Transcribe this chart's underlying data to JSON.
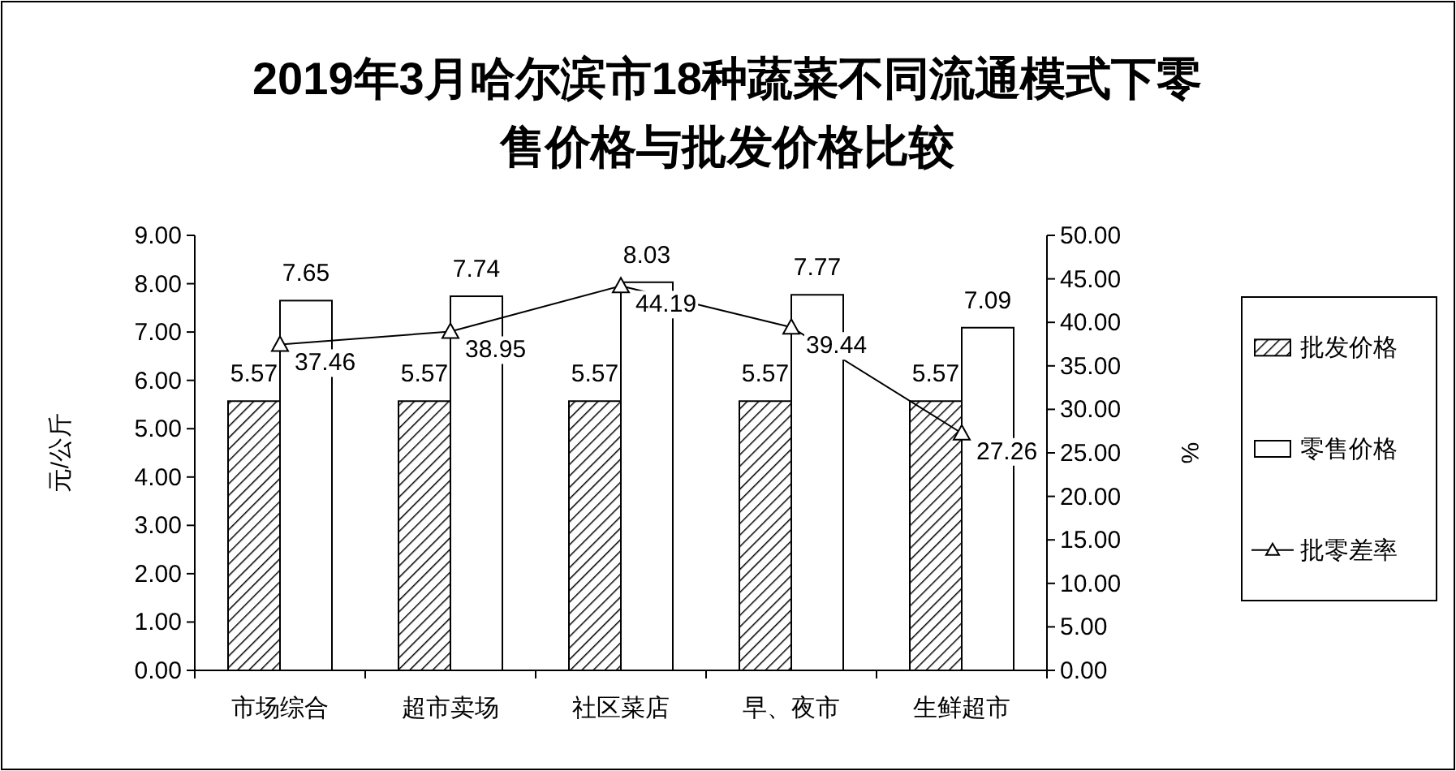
{
  "chart_data": {
    "type": "bar",
    "title": "2019年3月哈尔滨市18种蔬菜不同流通模式下零售价格与批发价格比较",
    "categories": [
      "市场综合",
      "超市卖场",
      "社区菜店",
      "早、夜市",
      "生鲜超市"
    ],
    "series": [
      {
        "name": "批发价格",
        "color": "#000000",
        "values": [
          5.57,
          5.57,
          5.57,
          5.57,
          5.57
        ]
      },
      {
        "name": "零售价格",
        "color": "#ffffff",
        "values": [
          7.65,
          7.74,
          8.03,
          7.77,
          7.09
        ]
      },
      {
        "name": "批零差率",
        "type": "line",
        "axis": "y2",
        "color": "#000000",
        "marker": "triangle",
        "values": [
          37.46,
          38.95,
          44.19,
          39.44,
          27.26
        ]
      }
    ],
    "ylabel": "元/公斤",
    "y2label": "%",
    "ylim": [
      0,
      9
    ],
    "yticks": [
      {
        "value": 0,
        "label": "0.00"
      },
      {
        "value": 1,
        "label": "1.00"
      },
      {
        "value": 2,
        "label": "2.00"
      },
      {
        "value": 3,
        "label": "3.00"
      },
      {
        "value": 4,
        "label": "4.00"
      },
      {
        "value": 5,
        "label": "5.00"
      },
      {
        "value": 6,
        "label": "6.00"
      },
      {
        "value": 7,
        "label": "7.00"
      },
      {
        "value": 8,
        "label": "8.00"
      },
      {
        "value": 9,
        "label": "9.00"
      }
    ],
    "y2lim": [
      0,
      50
    ],
    "y2ticks": [
      {
        "value": 0,
        "label": "0.00"
      },
      {
        "value": 5,
        "label": "5.00"
      },
      {
        "value": 10,
        "label": "10.00"
      },
      {
        "value": 15,
        "label": "15.00"
      },
      {
        "value": 20,
        "label": "20.00"
      },
      {
        "value": 25,
        "label": "25.00"
      },
      {
        "value": 30,
        "label": "30.00"
      },
      {
        "value": 35,
        "label": "35.00"
      },
      {
        "value": 40,
        "label": "40.00"
      },
      {
        "value": 45,
        "label": "45.00"
      },
      {
        "value": 50,
        "label": "50.00"
      }
    ],
    "data_labels": true,
    "legend": "right"
  }
}
